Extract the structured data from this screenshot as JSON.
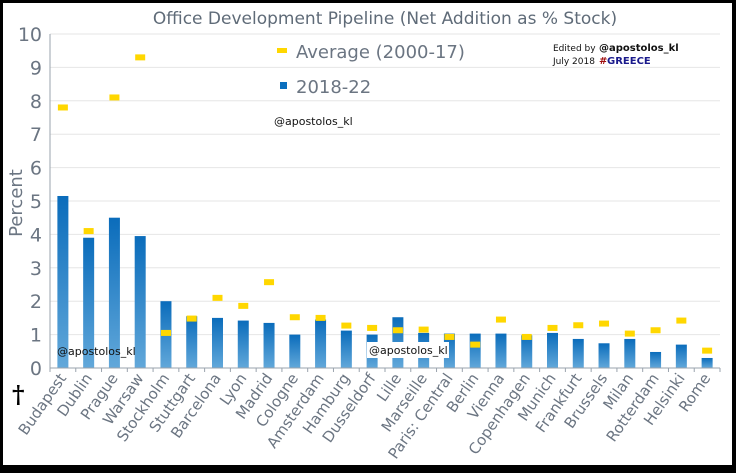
{
  "chart_data": {
    "type": "bar",
    "title": "Office Development Pipeline (Net Addition as % Stock)",
    "xlabel": "",
    "ylabel": "Percent",
    "ylim": [
      0,
      10
    ],
    "yticks": [
      "0",
      "1",
      "2",
      "3",
      "4",
      "5",
      "6",
      "7",
      "8",
      "9",
      "10"
    ],
    "grid": true,
    "legend_position": "top-center",
    "categories": [
      "Budapest",
      "Dublin",
      "Prague",
      "Warsaw",
      "Stockholm",
      "Stuttgart",
      "Barcelona",
      "Lyon",
      "Madrid",
      "Cologne",
      "Amsterdam",
      "Hamburg",
      "Dusseldorf",
      "Lille",
      "Marseille",
      "Paris: Central",
      "Berlin",
      "Vienna",
      "Copenhagen",
      "Munich",
      "Frankfurt",
      "Brussels",
      "Milan",
      "Rotterdam",
      "Helsinki",
      "Rome"
    ],
    "series": [
      {
        "name": "2018-22",
        "kind": "bar",
        "color": "#0b6fbe",
        "values": [
          5.15,
          3.9,
          4.5,
          3.95,
          2.0,
          1.55,
          1.5,
          1.42,
          1.35,
          1.0,
          1.45,
          1.12,
          1.0,
          1.52,
          1.05,
          1.03,
          1.03,
          1.03,
          0.98,
          1.05,
          0.87,
          0.74,
          0.87,
          0.48,
          0.7,
          0.3
        ]
      },
      {
        "name": "Average (2000-17)",
        "kind": "marker",
        "color": "#ffd700",
        "values": [
          7.8,
          4.1,
          8.1,
          9.3,
          1.05,
          1.48,
          2.1,
          1.86,
          2.57,
          1.52,
          1.5,
          1.27,
          1.2,
          1.13,
          1.15,
          0.93,
          0.7,
          1.45,
          0.93,
          1.2,
          1.28,
          1.33,
          1.03,
          1.13,
          1.42,
          0.52
        ]
      }
    ],
    "legend": [
      {
        "label": "Average (2000-17)",
        "marker": "dash",
        "color": "#ffd700"
      },
      {
        "label": "2018-22",
        "marker": "square",
        "color": "#0b6fbe"
      }
    ]
  },
  "annotations": {
    "edited_by_label": "Edited by",
    "edited_by_handle": "@apostolos_kl",
    "date_label": "July 2018",
    "hashtag_hash": "#",
    "hashtag_word": "GREECE",
    "watermarks": [
      "@apostolos_kl",
      "@apostolos_kl",
      "@apostolos_kl"
    ],
    "dagger": "†"
  },
  "colors": {
    "hash": "#a01010",
    "hashtag_word": "#1a1a8c",
    "gridline": "#e6e6e6",
    "axis": "#9aa3ad"
  }
}
